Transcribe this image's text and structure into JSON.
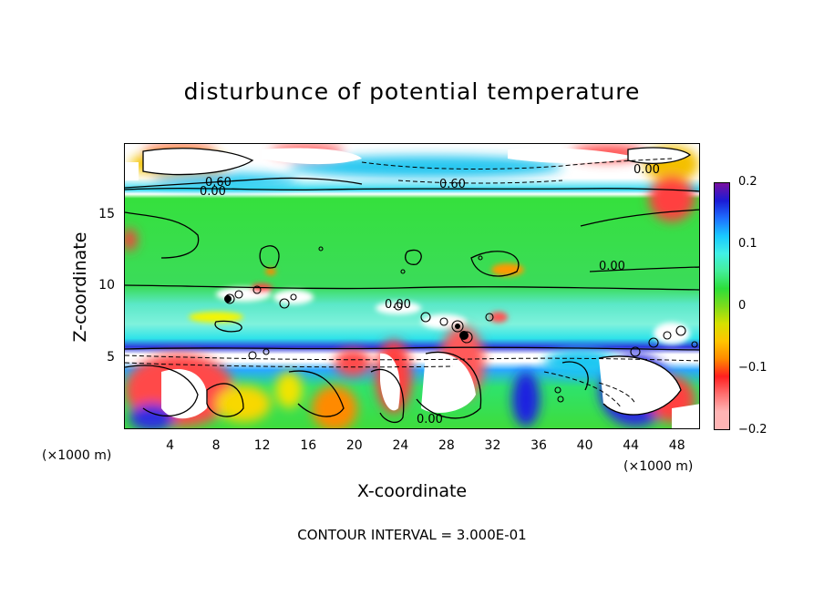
{
  "chart_data": {
    "type": "heatmap",
    "title": "disturbunce of potential temperature",
    "xlabel": "X-coordinate",
    "ylabel": "Z-coordinate",
    "x_unit": "(×1000 m)",
    "y_unit": "(×1000 m)",
    "xlim": [
      0,
      50
    ],
    "ylim": [
      0,
      20
    ],
    "x_ticks": [
      4,
      8,
      12,
      16,
      20,
      24,
      28,
      32,
      36,
      40,
      44,
      48
    ],
    "y_ticks": [
      5,
      10,
      15
    ],
    "colorbar": {
      "range": [
        -0.2,
        0.2
      ],
      "ticks": [
        "0.2",
        "0.1",
        "0",
        "−0.1",
        "−0.2"
      ],
      "colors": [
        "#7a0fa0",
        "#1b1bd6",
        "#1e6fff",
        "#19c8ff",
        "#41f0e6",
        "#44ee9a",
        "#2dde3a",
        "#7cdc1c",
        "#d6e000",
        "#ffc400",
        "#ff8a00",
        "#ff2020",
        "#ff6f6f",
        "#ffb4b4"
      ]
    },
    "contour_labels": [
      "0.60",
      "0.00",
      "0.60",
      "0.00",
      "0.00",
      "0.00",
      "0.00"
    ],
    "footnote": "CONTOUR INTERVAL = 3.000E-01"
  }
}
